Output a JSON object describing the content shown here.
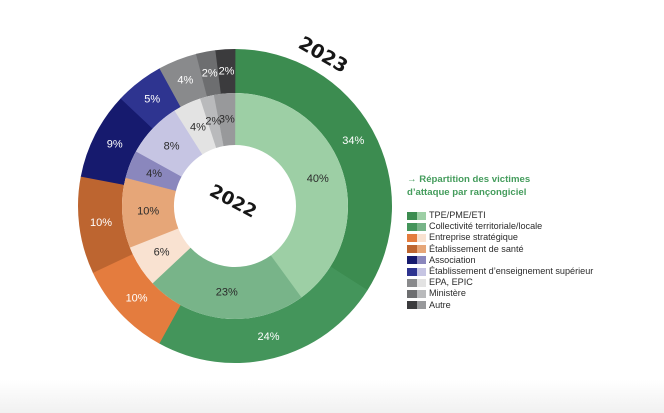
{
  "chart_data": {
    "type": "pie",
    "subtype": "nested-donut",
    "title": "→ Répartition des victimes d’attaque par rançongiciel",
    "categories": [
      "TPE/PME/ETI",
      "Collectivité territoriale/locale",
      "Entreprise stratégique",
      "Établissement de santé",
      "Association",
      "Établissement d’enseignement supérieur",
      "EPA, EPIC",
      "Ministère",
      "Autre"
    ],
    "series": [
      {
        "name": "2023",
        "ring": "outer",
        "values": [
          34,
          24,
          10,
          10,
          9,
          5,
          4,
          2,
          2
        ]
      },
      {
        "name": "2022",
        "ring": "inner",
        "values": [
          40,
          23,
          6,
          10,
          4,
          8,
          4,
          2,
          3
        ]
      }
    ],
    "unit": "%",
    "legend_position": "right",
    "start_angle": "top, clockwise"
  },
  "ring_labels": {
    "outer": "2023",
    "inner": "2022"
  },
  "label_colors": {
    "outer": "#ffffff",
    "inner": "#2b2b2b"
  },
  "legend": {
    "title_line1": "→ Répartition des victimes",
    "title_line2": "d’attaque par rançongiciel",
    "title_color": "#449c5c",
    "items": [
      {
        "label": "TPE/PME/ETI",
        "color_2023": "#3c8c50",
        "color_2022": "#9dcfa5"
      },
      {
        "label": "Collectivité territoriale/locale",
        "color_2023": "#44955b",
        "color_2022": "#78b489"
      },
      {
        "label": "Entreprise stratégique",
        "color_2023": "#e47c3e",
        "color_2022": "#f9e2d1"
      },
      {
        "label": "Établissement de santé",
        "color_2023": "#bd6530",
        "color_2022": "#e6a678"
      },
      {
        "label": "Association",
        "color_2023": "#161a6e",
        "color_2022": "#8a87bd"
      },
      {
        "label": "Établissement d’enseignement supérieur",
        "color_2023": "#2e3490",
        "color_2022": "#c6c5e3"
      },
      {
        "label": "EPA, EPIC",
        "color_2023": "#898a8c",
        "color_2022": "#e3e3e3"
      },
      {
        "label": "Ministère",
        "color_2023": "#6d6e70",
        "color_2022": "#b9babc"
      },
      {
        "label": "Autre",
        "color_2023": "#3b3b3d",
        "color_2022": "#98999b"
      }
    ]
  }
}
